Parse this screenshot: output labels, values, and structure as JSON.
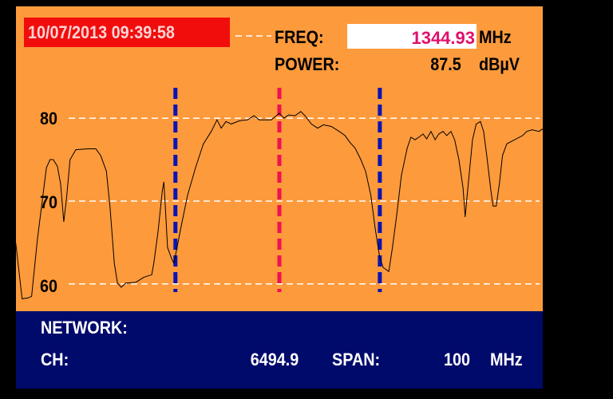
{
  "header": {
    "timestamp": "10/07/2013 09:39:58",
    "freq_label": "FREQ:",
    "freq_value": "1344.93",
    "freq_unit": "MHz",
    "power_label": "POWER:",
    "power_value": "87.5",
    "power_unit": "dBµV"
  },
  "footer": {
    "network_label": "NETWORK:",
    "ch_label": "CH:",
    "ch_value": "6494.9",
    "span_label": "SPAN:",
    "span_value": "100",
    "span_unit": "MHz"
  },
  "colors": {
    "background": "#fd9a3c",
    "info_panel": "#000a6b",
    "timestamp_box": "#f20d0d",
    "freq_value": "#e0106c",
    "center_marker": "#f01050",
    "side_markers": "#0a14b4",
    "trace": "#000000",
    "grid": "#ffffff"
  },
  "chart_data": {
    "type": "line",
    "xlabel": "",
    "ylabel": "",
    "xlim": [
      1294.93,
      1394.93
    ],
    "ylim": [
      56.7,
      93.5
    ],
    "yticks": [
      "80",
      "70",
      "60"
    ],
    "ytick_values": [
      80,
      70,
      60
    ],
    "grid": true,
    "markers": [
      {
        "role": "left",
        "freq": 1325.2,
        "color": "#0a14b4"
      },
      {
        "role": "center",
        "freq": 1344.93,
        "color": "#f01050"
      },
      {
        "role": "right",
        "freq": 1364.0,
        "color": "#0a14b4"
      }
    ],
    "series": [
      {
        "x": [
          1294.9,
          1295.5,
          1296.1,
          1297.2,
          1297.9,
          1299.0,
          1300.7,
          1301.4,
          1302.0,
          1302.8,
          1303.4,
          1304.0,
          1304.5,
          1305.2,
          1306.3,
          1308.6,
          1310.1,
          1311.0,
          1312.1,
          1312.8,
          1313.6,
          1314.2,
          1314.9,
          1315.8,
          1317.7,
          1319.2,
          1320.7,
          1321.1,
          1321.9,
          1322.7,
          1323.0,
          1323.3,
          1323.7,
          1324.5,
          1324.9,
          1325.5,
          1326.4,
          1327.5,
          1329.0,
          1330.5,
          1332.0,
          1333.1,
          1333.9,
          1334.8,
          1335.8,
          1337.4,
          1338.9,
          1340.1,
          1341.1,
          1343.4,
          1344.9,
          1345.8,
          1346.7,
          1347.9,
          1349.0,
          1349.8,
          1351.0,
          1352.2,
          1353.3,
          1354.8,
          1356.3,
          1357.4,
          1358.3,
          1359.3,
          1360.4,
          1361.3,
          1362.3,
          1363.1,
          1363.9,
          1364.6,
          1365.7,
          1366.4,
          1367.2,
          1368.1,
          1369.2,
          1369.9,
          1370.7,
          1371.4,
          1372.2,
          1372.9,
          1373.7,
          1374.5,
          1375.2,
          1376.0,
          1376.7,
          1377.5,
          1378.2,
          1379.0,
          1379.8,
          1380.2,
          1380.8,
          1381.6,
          1382.3,
          1383.1,
          1383.7,
          1384.3,
          1385.1,
          1385.5,
          1386.1,
          1386.7,
          1387.3,
          1388.1,
          1389.6,
          1391.1,
          1391.9,
          1392.9,
          1394.2,
          1394.9
        ],
        "y": [
          64.9,
          61.5,
          58.2,
          58.3,
          58.5,
          65.4,
          74.0,
          75.0,
          75.0,
          74.2,
          72.1,
          67.5,
          70.2,
          75.0,
          76.2,
          76.3,
          76.3,
          75.5,
          73.6,
          69.2,
          62.5,
          60.1,
          59.6,
          60.1,
          60.2,
          60.8,
          61.1,
          62.5,
          66.3,
          71.2,
          72.3,
          69.2,
          64.4,
          63.0,
          62.5,
          64.4,
          67.3,
          70.7,
          74.0,
          76.9,
          78.4,
          79.8,
          78.8,
          79.6,
          79.3,
          79.7,
          79.8,
          80.3,
          79.8,
          79.8,
          80.6,
          80.0,
          80.4,
          80.3,
          80.8,
          80.3,
          79.3,
          78.8,
          79.2,
          79.0,
          78.4,
          77.9,
          77.1,
          76.4,
          75.0,
          73.6,
          70.7,
          66.8,
          63.5,
          62.0,
          61.5,
          64.4,
          68.3,
          73.1,
          76.4,
          77.7,
          77.4,
          77.7,
          78.1,
          77.5,
          78.4,
          77.4,
          78.1,
          78.4,
          77.9,
          78.4,
          77.4,
          75.0,
          71.6,
          68.1,
          72.1,
          77.4,
          79.3,
          79.6,
          78.4,
          75.5,
          71.2,
          69.4,
          69.4,
          72.1,
          75.5,
          76.9,
          77.4,
          77.9,
          78.4,
          78.6,
          78.4,
          78.7
        ]
      }
    ]
  }
}
